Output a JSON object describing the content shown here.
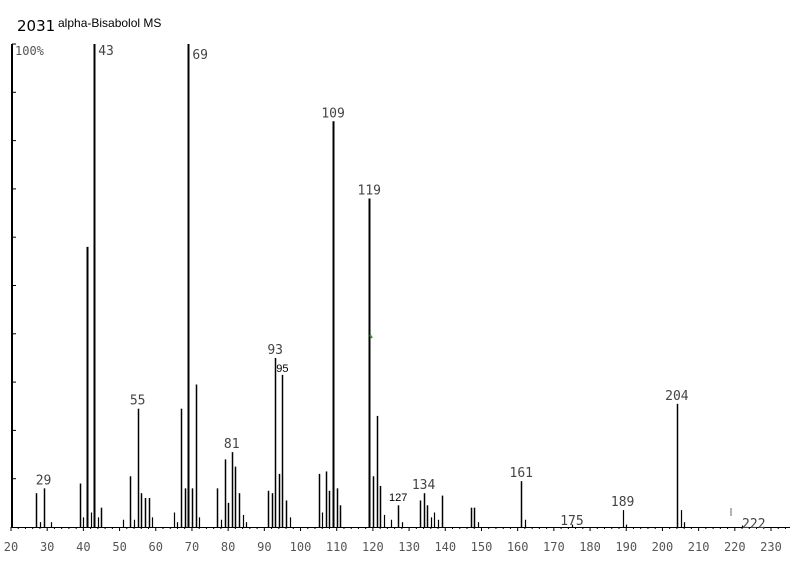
{
  "header": {
    "id_number": "2031",
    "compound": "alpha-Bisabolol MS"
  },
  "chart_data": {
    "type": "bar",
    "title": "alpha-Bisabolol MS",
    "xlabel": "",
    "ylabel": "",
    "xlim": [
      20,
      230
    ],
    "ylim": [
      0,
      100
    ],
    "y_max_label": "100%",
    "x_ticks": [
      20,
      30,
      40,
      50,
      60,
      70,
      80,
      90,
      100,
      110,
      120,
      130,
      140,
      150,
      160,
      170,
      180,
      190,
      200,
      210,
      220,
      230
    ],
    "peaks": [
      {
        "mz": 27,
        "intensity": 7
      },
      {
        "mz": 28,
        "intensity": 1
      },
      {
        "mz": 29,
        "intensity": 8,
        "label": "29"
      },
      {
        "mz": 31,
        "intensity": 1
      },
      {
        "mz": 39,
        "intensity": 9
      },
      {
        "mz": 40,
        "intensity": 2
      },
      {
        "mz": 41,
        "intensity": 58
      },
      {
        "mz": 42,
        "intensity": 3
      },
      {
        "mz": 43,
        "intensity": 100,
        "label": "43"
      },
      {
        "mz": 44,
        "intensity": 2
      },
      {
        "mz": 45,
        "intensity": 4
      },
      {
        "mz": 51,
        "intensity": 1.5
      },
      {
        "mz": 53,
        "intensity": 10.5
      },
      {
        "mz": 54,
        "intensity": 1.5
      },
      {
        "mz": 55,
        "intensity": 24.5,
        "label": "55"
      },
      {
        "mz": 56,
        "intensity": 7
      },
      {
        "mz": 57,
        "intensity": 6
      },
      {
        "mz": 58,
        "intensity": 6
      },
      {
        "mz": 59,
        "intensity": 2
      },
      {
        "mz": 65,
        "intensity": 3
      },
      {
        "mz": 66,
        "intensity": 1
      },
      {
        "mz": 67,
        "intensity": 24.5
      },
      {
        "mz": 68,
        "intensity": 8
      },
      {
        "mz": 69,
        "intensity": 100,
        "label": "69"
      },
      {
        "mz": 70,
        "intensity": 8
      },
      {
        "mz": 71,
        "intensity": 29.5
      },
      {
        "mz": 72,
        "intensity": 2
      },
      {
        "mz": 77,
        "intensity": 8
      },
      {
        "mz": 78,
        "intensity": 1.5
      },
      {
        "mz": 79,
        "intensity": 14
      },
      {
        "mz": 80,
        "intensity": 5
      },
      {
        "mz": 81,
        "intensity": 15.5,
        "label": "81"
      },
      {
        "mz": 82,
        "intensity": 12.5
      },
      {
        "mz": 83,
        "intensity": 7
      },
      {
        "mz": 84,
        "intensity": 2.5
      },
      {
        "mz": 85,
        "intensity": 1
      },
      {
        "mz": 91,
        "intensity": 7.5
      },
      {
        "mz": 92,
        "intensity": 7
      },
      {
        "mz": 93,
        "intensity": 35,
        "label": "93"
      },
      {
        "mz": 94,
        "intensity": 11
      },
      {
        "mz": 95,
        "intensity": 31.5,
        "label": "95"
      },
      {
        "mz": 96,
        "intensity": 5.5
      },
      {
        "mz": 97,
        "intensity": 2
      },
      {
        "mz": 105,
        "intensity": 11
      },
      {
        "mz": 106,
        "intensity": 3
      },
      {
        "mz": 107,
        "intensity": 11.5
      },
      {
        "mz": 108,
        "intensity": 7.5
      },
      {
        "mz": 109,
        "intensity": 84,
        "label": "109"
      },
      {
        "mz": 110,
        "intensity": 8
      },
      {
        "mz": 111,
        "intensity": 4.5
      },
      {
        "mz": 119,
        "intensity": 68,
        "label": "119"
      },
      {
        "mz": 120,
        "intensity": 10.5
      },
      {
        "mz": 121,
        "intensity": 23
      },
      {
        "mz": 122,
        "intensity": 8.5
      },
      {
        "mz": 123,
        "intensity": 2.5
      },
      {
        "mz": 125,
        "intensity": 1.5
      },
      {
        "mz": 127,
        "intensity": 4.5,
        "label": "127"
      },
      {
        "mz": 128,
        "intensity": 1
      },
      {
        "mz": 133,
        "intensity": 5.5
      },
      {
        "mz": 134,
        "intensity": 7,
        "label": "134"
      },
      {
        "mz": 135,
        "intensity": 4.5
      },
      {
        "mz": 136,
        "intensity": 2
      },
      {
        "mz": 137,
        "intensity": 3
      },
      {
        "mz": 138,
        "intensity": 1.5
      },
      {
        "mz": 139,
        "intensity": 6.5
      },
      {
        "mz": 147,
        "intensity": 4
      },
      {
        "mz": 148,
        "intensity": 4
      },
      {
        "mz": 149,
        "intensity": 1
      },
      {
        "mz": 161,
        "intensity": 9.5,
        "label": "161"
      },
      {
        "mz": 162,
        "intensity": 1.5
      },
      {
        "mz": 175,
        "intensity": 0.5,
        "label": "175"
      },
      {
        "mz": 189,
        "intensity": 3.5,
        "label": "189"
      },
      {
        "mz": 190,
        "intensity": 0.5
      },
      {
        "mz": 204,
        "intensity": 25.5,
        "label": "204"
      },
      {
        "mz": 205,
        "intensity": 3.5
      },
      {
        "mz": 206,
        "intensity": 1
      },
      {
        "mz": 222,
        "intensity": 0.3,
        "label": "222"
      }
    ]
  }
}
